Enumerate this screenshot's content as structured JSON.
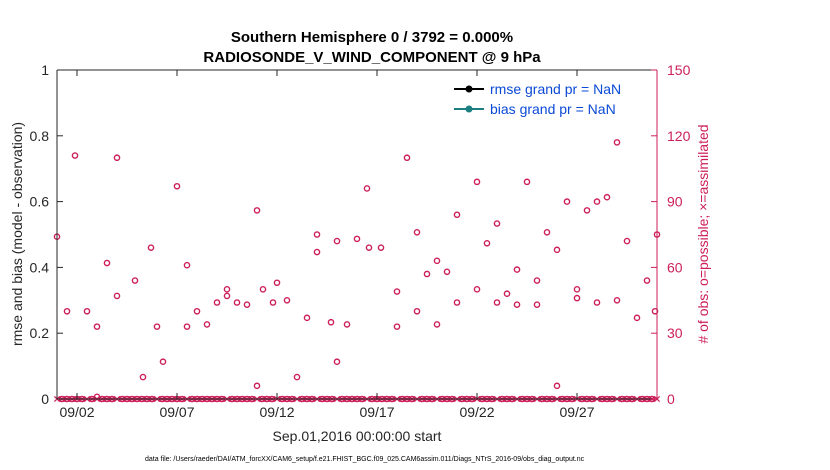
{
  "colors": {
    "left_axis": "#262626",
    "right_axis": "#cc1f5a",
    "legend_text": "#0a49d6",
    "rmse": "#000000",
    "bias": "#1b7f7f"
  },
  "chart_data": {
    "type": "scatter",
    "title": "Southern Hemisphere 0 / 3792 = 0.000%",
    "subtitle": "RADIOSONDE_V_WIND_COMPONENT @ 9 hPa",
    "xlabel": "Sep.01,2016 00:00:00 start",
    "ylabel": "rmse and bias (model - observation)",
    "ylabel_right": "# of obs: o=possible; ×=assimilated",
    "xlim": [
      1.0,
      31.0
    ],
    "ylim": [
      0,
      1
    ],
    "ylim_right": [
      0,
      150
    ],
    "x_ticks": [
      2,
      7,
      12,
      17,
      22,
      27
    ],
    "x_tick_labels": [
      "09/02",
      "09/07",
      "09/12",
      "09/17",
      "09/22",
      "09/27"
    ],
    "y_ticks": [
      0,
      0.2,
      0.4,
      0.6,
      0.8,
      1
    ],
    "y_tick_labels": [
      "0",
      "0.2",
      "0.4",
      "0.6",
      "0.8",
      "1"
    ],
    "y_right_ticks": [
      0,
      30,
      60,
      90,
      120,
      150
    ],
    "y_right_tick_labels": [
      "0",
      "30",
      "60",
      "90",
      "120",
      "150"
    ],
    "legend": [
      {
        "label": "rmse grand pr = NaN",
        "series": "rmse"
      },
      {
        "label": "bias grand pr = NaN",
        "series": "bias"
      }
    ],
    "legend_position": "top-right",
    "series": [
      {
        "name": "obs possible",
        "marker": "circle",
        "axis": "right",
        "x": [
          1.0,
          1.25,
          1.5,
          1.75,
          2.0,
          2.25,
          2.5,
          2.75,
          3.0,
          3.25,
          3.5,
          3.75,
          4.0,
          4.25,
          4.5,
          4.75,
          5.0,
          5.25,
          5.5,
          5.75,
          6.0,
          6.25,
          6.5,
          6.75,
          7.0,
          7.25,
          7.5,
          7.75,
          8.0,
          8.25,
          8.5,
          8.75,
          9.0,
          9.25,
          9.5,
          9.75,
          10.0,
          10.25,
          10.5,
          10.75,
          11.0,
          11.25,
          11.5,
          11.75,
          12.0,
          12.25,
          12.5,
          12.75,
          13.0,
          13.25,
          13.5,
          13.75,
          14.0,
          14.25,
          14.5,
          14.75,
          15.0,
          15.25,
          15.5,
          15.75,
          16.0,
          16.25,
          16.5,
          16.75,
          17.0,
          17.25,
          17.5,
          17.75,
          18.0,
          18.25,
          18.5,
          18.75,
          19.0,
          19.25,
          19.5,
          19.75,
          20.0,
          20.25,
          20.5,
          20.75,
          21.0,
          21.25,
          21.5,
          21.75,
          22.0,
          22.25,
          22.5,
          22.75,
          23.0,
          23.25,
          23.5,
          23.75,
          24.0,
          24.25,
          24.5,
          24.75,
          25.0,
          25.25,
          25.5,
          25.75,
          26.0,
          26.25,
          26.5,
          26.75,
          27.0,
          27.25,
          27.5,
          27.75,
          28.0,
          28.25,
          28.5,
          28.75,
          29.0,
          29.25,
          29.5,
          29.75,
          30.0,
          30.25,
          30.5,
          30.75,
          31.0
        ],
        "values": [
          74,
          0,
          0,
          0,
          0,
          0,
          40,
          0,
          1,
          0,
          0,
          0,
          110,
          0,
          0,
          0,
          0,
          0,
          0,
          0,
          33,
          0,
          0,
          0,
          0,
          0,
          61,
          0,
          0,
          0,
          0,
          0,
          0,
          0,
          47,
          0,
          0,
          0,
          0,
          0,
          86,
          0,
          0,
          0,
          53,
          0,
          0,
          0,
          10,
          0,
          0,
          0,
          67,
          0,
          0,
          0,
          17,
          0,
          0,
          0,
          0,
          0,
          96,
          0,
          0,
          0,
          0,
          0,
          33,
          0,
          0,
          0,
          40,
          0,
          0,
          0,
          34,
          0,
          0,
          0,
          44,
          0,
          0,
          0,
          50,
          0,
          0,
          0,
          44,
          0,
          0,
          0,
          43,
          0,
          0,
          0,
          43,
          0,
          0,
          0,
          6,
          0,
          0,
          0,
          50,
          0,
          0,
          0,
          44,
          0,
          0,
          0,
          45,
          0,
          0,
          0,
          37,
          0,
          0,
          0,
          75
        ]
      },
      {
        "name": "obs assimilated",
        "marker": "x",
        "axis": "right",
        "x": [
          1.0,
          1.25,
          1.5,
          1.75,
          2.0,
          2.25,
          2.5,
          2.75,
          3.0,
          3.25,
          3.5,
          3.75,
          4.0,
          4.25,
          4.5,
          4.75,
          5.0,
          5.25,
          5.5,
          5.75,
          6.0,
          6.25,
          6.5,
          6.75,
          7.0,
          7.25,
          7.5,
          7.75,
          8.0,
          8.25,
          8.5,
          8.75,
          9.0,
          9.25,
          9.5,
          9.75,
          10.0,
          10.25,
          10.5,
          10.75,
          11.0,
          11.25,
          11.5,
          11.75,
          12.0,
          12.25,
          12.5,
          12.75,
          13.0,
          13.25,
          13.5,
          13.75,
          14.0,
          14.25,
          14.5,
          14.75,
          15.0,
          15.25,
          15.5,
          15.75,
          16.0,
          16.25,
          16.5,
          16.75,
          17.0,
          17.25,
          17.5,
          17.75,
          18.0,
          18.25,
          18.5,
          18.75,
          19.0,
          19.25,
          19.5,
          19.75,
          20.0,
          20.25,
          20.5,
          20.75,
          21.0,
          21.25,
          21.5,
          21.75,
          22.0,
          22.25,
          22.5,
          22.75,
          23.0,
          23.25,
          23.5,
          23.75,
          24.0,
          24.25,
          24.5,
          24.75,
          25.0,
          25.25,
          25.5,
          25.75,
          26.0,
          26.25,
          26.5,
          26.75,
          27.0,
          27.25,
          27.5,
          27.75,
          28.0,
          28.25,
          28.5,
          28.75,
          29.0,
          29.25,
          29.5,
          29.75,
          30.0,
          30.25,
          30.5,
          30.75,
          31.0
        ],
        "values": [
          0,
          0,
          0,
          0,
          0,
          0,
          0,
          0,
          0,
          0,
          0,
          0,
          0,
          0,
          0,
          0,
          0,
          0,
          0,
          0,
          0,
          0,
          0,
          0,
          0,
          0,
          0,
          0,
          0,
          0,
          0,
          0,
          0,
          0,
          0,
          0,
          0,
          0,
          0,
          0,
          0,
          0,
          0,
          0,
          0,
          0,
          0,
          0,
          0,
          0,
          0,
          0,
          0,
          0,
          0,
          0,
          0,
          0,
          0,
          0,
          0,
          0,
          0,
          0,
          0,
          0,
          0,
          0,
          0,
          0,
          0,
          0,
          0,
          0,
          0,
          0,
          0,
          0,
          0,
          0,
          0,
          0,
          0,
          0,
          0,
          0,
          0,
          0,
          0,
          0,
          0,
          0,
          0,
          0,
          0,
          0,
          0,
          0,
          0,
          0,
          0,
          0,
          0,
          0,
          0,
          0,
          0,
          0,
          0,
          0,
          0,
          0,
          0,
          0,
          0,
          0,
          0,
          0,
          0,
          0,
          0
        ]
      },
      {
        "name": "scattered possible",
        "marker": "circle",
        "axis": "right",
        "x": [
          1.5,
          1.9,
          3.0,
          3.5,
          4.0,
          4.9,
          5.3,
          5.7,
          6.3,
          7.0,
          7.5,
          8.0,
          8.5,
          9.0,
          9.5,
          10.0,
          10.5,
          11.0,
          11.3,
          11.8,
          12.5,
          13.5,
          14.0,
          14.7,
          15.0,
          15.5,
          16.0,
          16.6,
          17.2,
          18.0,
          18.5,
          19.0,
          19.5,
          20.0,
          20.5,
          21.0,
          22.0,
          22.5,
          23.0,
          23.5,
          24.0,
          24.5,
          25.0,
          25.5,
          26.0,
          26.5,
          27.0,
          27.5,
          28.0,
          28.5,
          29.0,
          29.5,
          30.5,
          30.9
        ],
        "values": [
          40,
          111,
          33,
          62,
          47,
          54,
          10,
          69,
          17,
          97,
          33,
          40,
          34,
          44,
          50,
          44,
          43,
          6,
          50,
          44,
          45,
          37,
          75,
          35,
          72,
          34,
          73,
          69,
          69,
          49,
          110,
          76,
          57,
          63,
          58,
          84,
          99,
          71,
          80,
          48,
          59,
          99,
          54,
          76,
          68,
          90,
          46,
          86,
          90,
          92,
          117,
          72,
          54,
          40
        ]
      }
    ]
  },
  "footer": {
    "text": "data file: /Users/raeder/DAI/ATM_forcXX/CAM6_setup/f.e21.FHIST_BGC.f09_025.CAM6assim.011/Diags_NTrS_2016-09/obs_diag_output.nc"
  }
}
